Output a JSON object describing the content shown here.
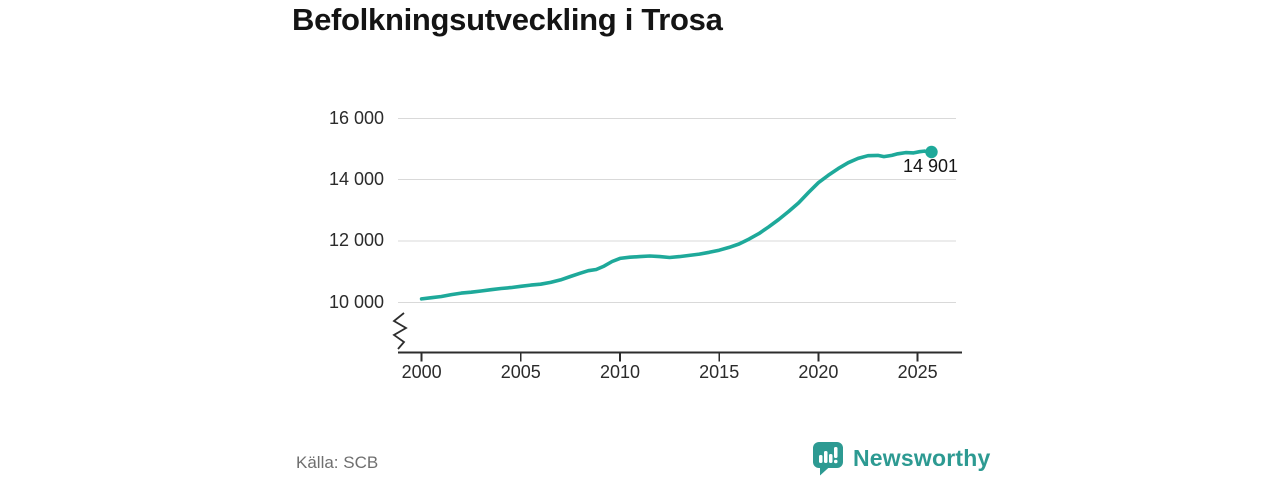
{
  "header": {
    "title": "Befolkningsutveckling i Trosa"
  },
  "chart_data": {
    "type": "line",
    "title": "Befolkningsutveckling i Trosa",
    "xlabel": "",
    "ylabel": "",
    "grid": "horizontal",
    "legend": "none",
    "axis_break": true,
    "xlim": [
      2000,
      2027.2
    ],
    "ylim": [
      10000,
      16000
    ],
    "x_ticks": [
      {
        "value": 2000,
        "label": "2000"
      },
      {
        "value": 2005,
        "label": "2005"
      },
      {
        "value": 2010,
        "label": "2010"
      },
      {
        "value": 2015,
        "label": "2015"
      },
      {
        "value": 2020,
        "label": "2020"
      },
      {
        "value": 2025,
        "label": "2025"
      }
    ],
    "y_ticks": [
      {
        "value": 10000,
        "label": "10 000"
      },
      {
        "value": 12000,
        "label": "12 000"
      },
      {
        "value": 14000,
        "label": "14 000"
      },
      {
        "value": 16000,
        "label": "16 000"
      }
    ],
    "colors": {
      "line": "#1ea99a",
      "grid": "#d9d9d9",
      "axis": "#2d2d2d",
      "text": "#2b2b2b",
      "muted": "#6f6f6f",
      "brand": "#2d9a92"
    },
    "series": [
      {
        "end_value": 14901,
        "end_label": "14 901",
        "color": "#1ea99a",
        "points": [
          [
            2000.0,
            10110
          ],
          [
            2000.5,
            10150
          ],
          [
            2001.0,
            10190
          ],
          [
            2001.5,
            10250
          ],
          [
            2002.0,
            10300
          ],
          [
            2002.5,
            10330
          ],
          [
            2003.0,
            10370
          ],
          [
            2003.5,
            10410
          ],
          [
            2004.0,
            10450
          ],
          [
            2004.5,
            10480
          ],
          [
            2005.0,
            10520
          ],
          [
            2005.5,
            10560
          ],
          [
            2006.0,
            10590
          ],
          [
            2006.5,
            10650
          ],
          [
            2007.0,
            10730
          ],
          [
            2007.5,
            10840
          ],
          [
            2008.0,
            10950
          ],
          [
            2008.4,
            11030
          ],
          [
            2008.8,
            11070
          ],
          [
            2009.2,
            11180
          ],
          [
            2009.6,
            11330
          ],
          [
            2010.0,
            11430
          ],
          [
            2010.5,
            11470
          ],
          [
            2011.0,
            11490
          ],
          [
            2011.5,
            11510
          ],
          [
            2012.0,
            11490
          ],
          [
            2012.5,
            11460
          ],
          [
            2013.0,
            11490
          ],
          [
            2013.5,
            11530
          ],
          [
            2014.0,
            11570
          ],
          [
            2014.5,
            11630
          ],
          [
            2015.0,
            11700
          ],
          [
            2015.5,
            11790
          ],
          [
            2016.0,
            11900
          ],
          [
            2016.5,
            12060
          ],
          [
            2017.0,
            12240
          ],
          [
            2017.5,
            12460
          ],
          [
            2018.0,
            12700
          ],
          [
            2018.5,
            12960
          ],
          [
            2019.0,
            13240
          ],
          [
            2019.5,
            13580
          ],
          [
            2020.0,
            13900
          ],
          [
            2020.5,
            14140
          ],
          [
            2021.0,
            14360
          ],
          [
            2021.5,
            14550
          ],
          [
            2022.0,
            14690
          ],
          [
            2022.5,
            14780
          ],
          [
            2023.0,
            14790
          ],
          [
            2023.3,
            14750
          ],
          [
            2023.7,
            14790
          ],
          [
            2024.0,
            14840
          ],
          [
            2024.4,
            14880
          ],
          [
            2024.8,
            14870
          ],
          [
            2025.1,
            14910
          ],
          [
            2025.35,
            14930
          ],
          [
            2025.55,
            14890
          ],
          [
            2025.7,
            14901
          ]
        ]
      }
    ]
  },
  "footer": {
    "source": "Källa: SCB",
    "brand": "Newsworthy"
  }
}
